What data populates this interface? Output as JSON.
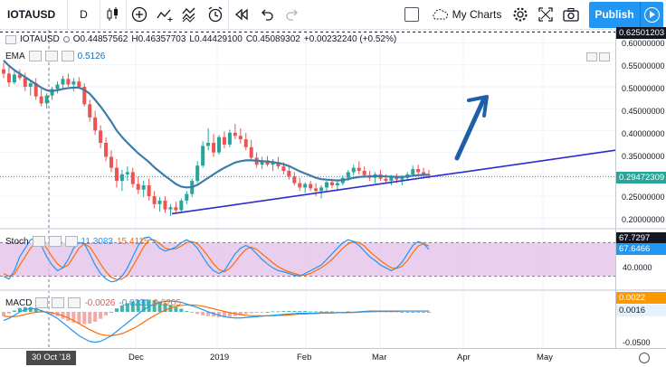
{
  "toolbar": {
    "symbol": "IOTAUSD",
    "interval": "D",
    "my_charts": "My Charts",
    "publish": "Publish"
  },
  "legend_main": {
    "symbol": "IOTAUSD",
    "open": "O0.44857562",
    "high": "H0.46357703",
    "low": "L0.44429100",
    "close": "C0.45089302",
    "change": "+0.00232240 (+0.52%)"
  },
  "legend_ema": {
    "name": "EMA",
    "value": "0.5126"
  },
  "legend_stoch": {
    "name": "Stoch",
    "k": "11.3083",
    "d": "15.4115"
  },
  "legend_macd": {
    "name": "MACD",
    "v1": "-0.0026",
    "v2": "-0.0231",
    "v3": "0.0205"
  },
  "price_axis": {
    "top_tag": "0.62501203",
    "current_tag": "0.29472309",
    "labels": [
      "0.60000000",
      "0.55000000",
      "0.50000000",
      "0.45000000",
      "0.40000000",
      "0.35000000",
      "0.30000000",
      "0.25000000",
      "0.20000000"
    ]
  },
  "stoch_axis": {
    "tag1": "67.7297",
    "tag2": "67.6466",
    "label": "40.0000"
  },
  "macd_axis": {
    "tag1": "0.0022",
    "tag2": "0.0016",
    "label": "-0.0500"
  },
  "time_axis": {
    "highlight": "30 Oct '18",
    "labels": [
      "Dec",
      "2019",
      "Feb",
      "Mar",
      "Apr",
      "May"
    ]
  },
  "colors": {
    "up": "#26a69a",
    "down": "#ef5350",
    "ema": "#3d7ba8",
    "trend": "#2a2ad0",
    "arrow": "#1e5fa8",
    "stoch_k": "#2196f3",
    "stoch_d": "#ff6d00",
    "stoch_band": "#e1bee7",
    "tag_orange": "#ff9800",
    "tag_blue": "#2196f3",
    "tag_dark": "#131722"
  },
  "chart_data": {
    "type": "candlestick",
    "title": "IOTAUSD",
    "ylim": [
      0.18,
      0.63
    ],
    "candles": [
      [
        0.54,
        0.555,
        0.52,
        0.53
      ],
      [
        0.53,
        0.548,
        0.5,
        0.51
      ],
      [
        0.51,
        0.535,
        0.505,
        0.528
      ],
      [
        0.528,
        0.54,
        0.515,
        0.52
      ],
      [
        0.52,
        0.532,
        0.49,
        0.5
      ],
      [
        0.5,
        0.515,
        0.48,
        0.508
      ],
      [
        0.508,
        0.52,
        0.47,
        0.478
      ],
      [
        0.478,
        0.495,
        0.455,
        0.462
      ],
      [
        0.462,
        0.485,
        0.45,
        0.48
      ],
      [
        0.48,
        0.5,
        0.47,
        0.495
      ],
      [
        0.495,
        0.512,
        0.485,
        0.505
      ],
      [
        0.505,
        0.525,
        0.495,
        0.518
      ],
      [
        0.518,
        0.53,
        0.5,
        0.505
      ],
      [
        0.505,
        0.52,
        0.49,
        0.512
      ],
      [
        0.512,
        0.522,
        0.495,
        0.5
      ],
      [
        0.5,
        0.508,
        0.455,
        0.46
      ],
      [
        0.46,
        0.47,
        0.42,
        0.43
      ],
      [
        0.43,
        0.445,
        0.39,
        0.4
      ],
      [
        0.4,
        0.412,
        0.36,
        0.372
      ],
      [
        0.372,
        0.385,
        0.33,
        0.34
      ],
      [
        0.34,
        0.355,
        0.305,
        0.315
      ],
      [
        0.315,
        0.335,
        0.27,
        0.285
      ],
      [
        0.285,
        0.31,
        0.262,
        0.3
      ],
      [
        0.3,
        0.318,
        0.285,
        0.305
      ],
      [
        0.305,
        0.315,
        0.27,
        0.278
      ],
      [
        0.278,
        0.295,
        0.255,
        0.265
      ],
      [
        0.265,
        0.285,
        0.248,
        0.275
      ],
      [
        0.275,
        0.29,
        0.24,
        0.25
      ],
      [
        0.25,
        0.262,
        0.222,
        0.232
      ],
      [
        0.232,
        0.248,
        0.215,
        0.24
      ],
      [
        0.24,
        0.25,
        0.212,
        0.22
      ],
      [
        0.22,
        0.232,
        0.205,
        0.225
      ],
      [
        0.225,
        0.238,
        0.212,
        0.218
      ],
      [
        0.218,
        0.245,
        0.214,
        0.24
      ],
      [
        0.24,
        0.262,
        0.232,
        0.255
      ],
      [
        0.255,
        0.29,
        0.248,
        0.285
      ],
      [
        0.285,
        0.33,
        0.28,
        0.32
      ],
      [
        0.32,
        0.375,
        0.315,
        0.365
      ],
      [
        0.365,
        0.405,
        0.355,
        0.372
      ],
      [
        0.372,
        0.392,
        0.34,
        0.35
      ],
      [
        0.35,
        0.39,
        0.345,
        0.385
      ],
      [
        0.385,
        0.398,
        0.36,
        0.368
      ],
      [
        0.368,
        0.402,
        0.362,
        0.395
      ],
      [
        0.395,
        0.415,
        0.38,
        0.388
      ],
      [
        0.388,
        0.405,
        0.37,
        0.38
      ],
      [
        0.38,
        0.395,
        0.355,
        0.362
      ],
      [
        0.362,
        0.378,
        0.33,
        0.338
      ],
      [
        0.338,
        0.35,
        0.315,
        0.322
      ],
      [
        0.322,
        0.34,
        0.312,
        0.332
      ],
      [
        0.332,
        0.342,
        0.318,
        0.322
      ],
      [
        0.322,
        0.335,
        0.308,
        0.328
      ],
      [
        0.328,
        0.34,
        0.312,
        0.318
      ],
      [
        0.318,
        0.328,
        0.3,
        0.308
      ],
      [
        0.308,
        0.318,
        0.288,
        0.295
      ],
      [
        0.295,
        0.305,
        0.275,
        0.28
      ],
      [
        0.28,
        0.292,
        0.262,
        0.27
      ],
      [
        0.27,
        0.282,
        0.258,
        0.278
      ],
      [
        0.278,
        0.285,
        0.262,
        0.268
      ],
      [
        0.268,
        0.28,
        0.25,
        0.262
      ],
      [
        0.262,
        0.275,
        0.245,
        0.27
      ],
      [
        0.27,
        0.285,
        0.262,
        0.282
      ],
      [
        0.282,
        0.29,
        0.268,
        0.275
      ],
      [
        0.275,
        0.285,
        0.265,
        0.28
      ],
      [
        0.28,
        0.298,
        0.275,
        0.292
      ],
      [
        0.292,
        0.31,
        0.285,
        0.305
      ],
      [
        0.305,
        0.322,
        0.298,
        0.315
      ],
      [
        0.315,
        0.33,
        0.3,
        0.308
      ],
      [
        0.308,
        0.318,
        0.292,
        0.298
      ],
      [
        0.298,
        0.308,
        0.285,
        0.292
      ],
      [
        0.292,
        0.305,
        0.28,
        0.3
      ],
      [
        0.3,
        0.31,
        0.285,
        0.29
      ],
      [
        0.29,
        0.3,
        0.278,
        0.285
      ],
      [
        0.285,
        0.298,
        0.275,
        0.295
      ],
      [
        0.295,
        0.302,
        0.28,
        0.288
      ],
      [
        0.288,
        0.298,
        0.275,
        0.292
      ],
      [
        0.292,
        0.305,
        0.285,
        0.3
      ],
      [
        0.3,
        0.32,
        0.295,
        0.312
      ],
      [
        0.312,
        0.322,
        0.298,
        0.305
      ],
      [
        0.305,
        0.315,
        0.292,
        0.3
      ],
      [
        0.3,
        0.31,
        0.29,
        0.298
      ]
    ],
    "ema": [
      0.56,
      0.548,
      0.538,
      0.53,
      0.522,
      0.514,
      0.506,
      0.498,
      0.492,
      0.49,
      0.492,
      0.495,
      0.497,
      0.498,
      0.498,
      0.493,
      0.484,
      0.47,
      0.455,
      0.438,
      0.42,
      0.4,
      0.385,
      0.372,
      0.36,
      0.348,
      0.338,
      0.328,
      0.316,
      0.306,
      0.296,
      0.287,
      0.278,
      0.272,
      0.27,
      0.271,
      0.276,
      0.284,
      0.292,
      0.3,
      0.308,
      0.315,
      0.321,
      0.327,
      0.33,
      0.332,
      0.332,
      0.331,
      0.33,
      0.329,
      0.328,
      0.326,
      0.323,
      0.319,
      0.313,
      0.307,
      0.302,
      0.297,
      0.292,
      0.289,
      0.288,
      0.287,
      0.286,
      0.287,
      0.289,
      0.292,
      0.294,
      0.295,
      0.295,
      0.296,
      0.296,
      0.295,
      0.295,
      0.294,
      0.294,
      0.295,
      0.297,
      0.298,
      0.299,
      0.299
    ],
    "trendline": [
      [
        31,
        0.21
      ],
      [
        79,
        0.355
      ]
    ],
    "stoch": {
      "k": [
        20,
        15,
        30,
        55,
        70,
        85,
        88,
        75,
        55,
        40,
        30,
        35,
        50,
        70,
        80,
        78,
        60,
        40,
        25,
        15,
        10,
        12,
        20,
        35,
        55,
        75,
        88,
        90,
        82,
        70,
        65,
        68,
        72,
        80,
        85,
        80,
        70,
        55,
        40,
        30,
        25,
        30,
        45,
        60,
        70,
        75,
        70,
        60,
        50,
        42,
        35,
        30,
        28,
        25,
        22,
        20,
        25,
        30,
        35,
        40,
        50,
        60,
        70,
        80,
        85,
        82,
        75,
        65,
        55,
        48,
        40,
        35,
        30,
        35,
        45,
        60,
        75,
        82,
        78,
        68
      ],
      "d": [
        25,
        20,
        24,
        40,
        55,
        70,
        80,
        82,
        70,
        55,
        42,
        35,
        40,
        55,
        70,
        78,
        72,
        58,
        42,
        28,
        18,
        14,
        15,
        22,
        38,
        55,
        72,
        85,
        85,
        78,
        70,
        68,
        69,
        74,
        80,
        82,
        78,
        68,
        55,
        42,
        32,
        28,
        34,
        45,
        58,
        68,
        72,
        68,
        60,
        52,
        44,
        37,
        32,
        28,
        25,
        22,
        22,
        25,
        30,
        35,
        42,
        50,
        60,
        70,
        78,
        82,
        80,
        74,
        64,
        56,
        48,
        41,
        35,
        34,
        38,
        48,
        62,
        74,
        78,
        74
      ]
    },
    "macd": {
      "macd": [
        -0.02,
        -0.015,
        -0.008,
        0.0,
        0.005,
        0.008,
        0.007,
        0.003,
        -0.002,
        -0.008,
        -0.015,
        -0.025,
        -0.035,
        -0.045,
        -0.055,
        -0.062,
        -0.068,
        -0.07,
        -0.068,
        -0.062,
        -0.055,
        -0.045,
        -0.035,
        -0.025,
        -0.015,
        -0.005,
        0.005,
        0.012,
        0.018,
        0.022,
        0.024,
        0.025,
        0.024,
        0.022,
        0.018,
        0.014,
        0.01,
        0.005,
        0.0,
        -0.004,
        -0.008,
        -0.011,
        -0.013,
        -0.014,
        -0.014,
        -0.013,
        -0.012,
        -0.011,
        -0.01,
        -0.009,
        -0.008,
        -0.007,
        -0.006,
        -0.005,
        -0.004,
        -0.003,
        -0.003,
        -0.003,
        -0.003,
        -0.002,
        -0.002,
        -0.002,
        -0.002,
        -0.002,
        -0.001,
        -0.001,
        0.0,
        0.001,
        0.002,
        0.002,
        0.002,
        0.002,
        0.002,
        0.002,
        0.002,
        0.002,
        0.002,
        0.002,
        0.002,
        0.002
      ],
      "signal": [
        -0.01,
        -0.011,
        -0.011,
        -0.009,
        -0.006,
        -0.003,
        -0.001,
        0.0,
        0.0,
        -0.002,
        -0.005,
        -0.009,
        -0.014,
        -0.02,
        -0.027,
        -0.034,
        -0.041,
        -0.047,
        -0.052,
        -0.054,
        -0.055,
        -0.053,
        -0.05,
        -0.045,
        -0.039,
        -0.032,
        -0.024,
        -0.016,
        -0.009,
        -0.002,
        0.004,
        0.009,
        0.013,
        0.015,
        0.016,
        0.016,
        0.015,
        0.013,
        0.01,
        0.007,
        0.004,
        0.001,
        -0.002,
        -0.004,
        -0.006,
        -0.008,
        -0.009,
        -0.009,
        -0.009,
        -0.009,
        -0.009,
        -0.008,
        -0.008,
        -0.007,
        -0.006,
        -0.005,
        -0.005,
        -0.004,
        -0.004,
        -0.003,
        -0.003,
        -0.003,
        -0.002,
        -0.002,
        -0.002,
        -0.001,
        -0.001,
        0.0,
        0.0,
        0.001,
        0.001,
        0.001,
        0.001,
        0.001,
        0.002,
        0.002,
        0.002,
        0.002,
        0.002,
        0.002
      ]
    }
  }
}
